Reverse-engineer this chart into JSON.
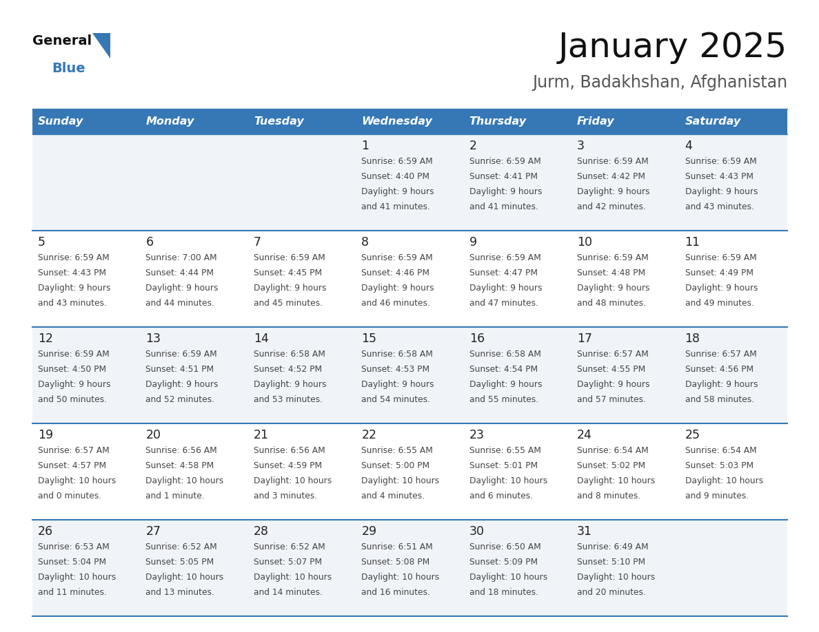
{
  "title": "January 2025",
  "subtitle": "Jurm, Badakhshan, Afghanistan",
  "days_of_week": [
    "Sunday",
    "Monday",
    "Tuesday",
    "Wednesday",
    "Thursday",
    "Friday",
    "Saturday"
  ],
  "header_bg_color": "#3578b5",
  "header_text_color": "#ffffff",
  "cell_bg_row0": "#f0f4f8",
  "cell_bg_row1": "#ffffff",
  "border_color": "#3578b5",
  "day_number_color": "#222222",
  "cell_text_color": "#444444",
  "title_color": "#111111",
  "subtitle_color": "#555555",
  "logo_general_color": "#111111",
  "logo_blue_color": "#3578b5",
  "calendar_data": [
    [
      {
        "day": "",
        "info": ""
      },
      {
        "day": "",
        "info": ""
      },
      {
        "day": "",
        "info": ""
      },
      {
        "day": "1",
        "info": "Sunrise: 6:59 AM\nSunset: 4:40 PM\nDaylight: 9 hours\nand 41 minutes."
      },
      {
        "day": "2",
        "info": "Sunrise: 6:59 AM\nSunset: 4:41 PM\nDaylight: 9 hours\nand 41 minutes."
      },
      {
        "day": "3",
        "info": "Sunrise: 6:59 AM\nSunset: 4:42 PM\nDaylight: 9 hours\nand 42 minutes."
      },
      {
        "day": "4",
        "info": "Sunrise: 6:59 AM\nSunset: 4:43 PM\nDaylight: 9 hours\nand 43 minutes."
      }
    ],
    [
      {
        "day": "5",
        "info": "Sunrise: 6:59 AM\nSunset: 4:43 PM\nDaylight: 9 hours\nand 43 minutes."
      },
      {
        "day": "6",
        "info": "Sunrise: 7:00 AM\nSunset: 4:44 PM\nDaylight: 9 hours\nand 44 minutes."
      },
      {
        "day": "7",
        "info": "Sunrise: 6:59 AM\nSunset: 4:45 PM\nDaylight: 9 hours\nand 45 minutes."
      },
      {
        "day": "8",
        "info": "Sunrise: 6:59 AM\nSunset: 4:46 PM\nDaylight: 9 hours\nand 46 minutes."
      },
      {
        "day": "9",
        "info": "Sunrise: 6:59 AM\nSunset: 4:47 PM\nDaylight: 9 hours\nand 47 minutes."
      },
      {
        "day": "10",
        "info": "Sunrise: 6:59 AM\nSunset: 4:48 PM\nDaylight: 9 hours\nand 48 minutes."
      },
      {
        "day": "11",
        "info": "Sunrise: 6:59 AM\nSunset: 4:49 PM\nDaylight: 9 hours\nand 49 minutes."
      }
    ],
    [
      {
        "day": "12",
        "info": "Sunrise: 6:59 AM\nSunset: 4:50 PM\nDaylight: 9 hours\nand 50 minutes."
      },
      {
        "day": "13",
        "info": "Sunrise: 6:59 AM\nSunset: 4:51 PM\nDaylight: 9 hours\nand 52 minutes."
      },
      {
        "day": "14",
        "info": "Sunrise: 6:58 AM\nSunset: 4:52 PM\nDaylight: 9 hours\nand 53 minutes."
      },
      {
        "day": "15",
        "info": "Sunrise: 6:58 AM\nSunset: 4:53 PM\nDaylight: 9 hours\nand 54 minutes."
      },
      {
        "day": "16",
        "info": "Sunrise: 6:58 AM\nSunset: 4:54 PM\nDaylight: 9 hours\nand 55 minutes."
      },
      {
        "day": "17",
        "info": "Sunrise: 6:57 AM\nSunset: 4:55 PM\nDaylight: 9 hours\nand 57 minutes."
      },
      {
        "day": "18",
        "info": "Sunrise: 6:57 AM\nSunset: 4:56 PM\nDaylight: 9 hours\nand 58 minutes."
      }
    ],
    [
      {
        "day": "19",
        "info": "Sunrise: 6:57 AM\nSunset: 4:57 PM\nDaylight: 10 hours\nand 0 minutes."
      },
      {
        "day": "20",
        "info": "Sunrise: 6:56 AM\nSunset: 4:58 PM\nDaylight: 10 hours\nand 1 minute."
      },
      {
        "day": "21",
        "info": "Sunrise: 6:56 AM\nSunset: 4:59 PM\nDaylight: 10 hours\nand 3 minutes."
      },
      {
        "day": "22",
        "info": "Sunrise: 6:55 AM\nSunset: 5:00 PM\nDaylight: 10 hours\nand 4 minutes."
      },
      {
        "day": "23",
        "info": "Sunrise: 6:55 AM\nSunset: 5:01 PM\nDaylight: 10 hours\nand 6 minutes."
      },
      {
        "day": "24",
        "info": "Sunrise: 6:54 AM\nSunset: 5:02 PM\nDaylight: 10 hours\nand 8 minutes."
      },
      {
        "day": "25",
        "info": "Sunrise: 6:54 AM\nSunset: 5:03 PM\nDaylight: 10 hours\nand 9 minutes."
      }
    ],
    [
      {
        "day": "26",
        "info": "Sunrise: 6:53 AM\nSunset: 5:04 PM\nDaylight: 10 hours\nand 11 minutes."
      },
      {
        "day": "27",
        "info": "Sunrise: 6:52 AM\nSunset: 5:05 PM\nDaylight: 10 hours\nand 13 minutes."
      },
      {
        "day": "28",
        "info": "Sunrise: 6:52 AM\nSunset: 5:07 PM\nDaylight: 10 hours\nand 14 minutes."
      },
      {
        "day": "29",
        "info": "Sunrise: 6:51 AM\nSunset: 5:08 PM\nDaylight: 10 hours\nand 16 minutes."
      },
      {
        "day": "30",
        "info": "Sunrise: 6:50 AM\nSunset: 5:09 PM\nDaylight: 10 hours\nand 18 minutes."
      },
      {
        "day": "31",
        "info": "Sunrise: 6:49 AM\nSunset: 5:10 PM\nDaylight: 10 hours\nand 20 minutes."
      },
      {
        "day": "",
        "info": ""
      }
    ]
  ]
}
